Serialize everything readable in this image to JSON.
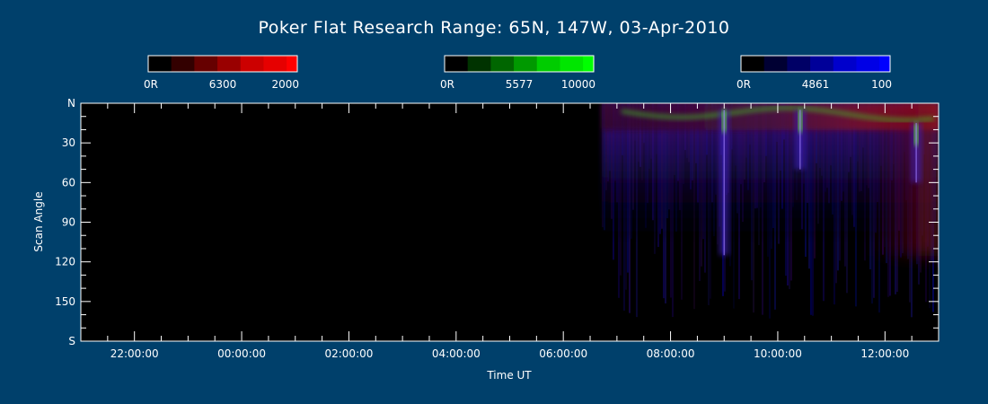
{
  "chart_data": {
    "type": "heatmap",
    "title": "Poker Flat Research Range: 65N, 147W, 03-Apr-2010",
    "xlabel": "Time UT",
    "ylabel": "Scan Angle",
    "x_ticks": [
      "22:00:00",
      "00:00:00",
      "02:00:00",
      "04:00:00",
      "06:00:00",
      "08:00:00",
      "10:00:00",
      "12:00:00"
    ],
    "x_range": [
      "21:00:00",
      "13:00:00"
    ],
    "y_ticks": [
      "N",
      "30",
      "60",
      "90",
      "120",
      "150",
      "S"
    ],
    "y_range": [
      0,
      180
    ],
    "data_start": "06:43:00",
    "colorbars": [
      {
        "channel": "6300",
        "min_label": "0R",
        "max_label": "2000",
        "color": "#ff0000",
        "swatches": [
          "#000000",
          "#330000",
          "#660000",
          "#990000",
          "#cc0000",
          "#e60000",
          "#ff0000"
        ]
      },
      {
        "channel": "5577",
        "min_label": "0R",
        "max_label": "10000",
        "color": "#00ff00",
        "swatches": [
          "#000000",
          "#003300",
          "#006600",
          "#009900",
          "#00cc00",
          "#00e600",
          "#00ff00"
        ]
      },
      {
        "channel": "4861",
        "min_label": "0R",
        "max_label": "100",
        "color": "#0000ff",
        "swatches": [
          "#000000",
          "#000033",
          "#000066",
          "#000099",
          "#0000cc",
          "#0000e6",
          "#0000ff"
        ]
      }
    ],
    "features": [
      {
        "time": "09:00:00",
        "channels": [
          "green",
          "blue"
        ],
        "from_angle": 5,
        "to_angle": 115
      },
      {
        "time": "10:25:00",
        "channels": [
          "green",
          "blue"
        ],
        "from_angle": 5,
        "to_angle": 50
      },
      {
        "time": "12:35:00",
        "channels": [
          "green",
          "red"
        ],
        "from_angle": 15,
        "to_angle": 60
      }
    ]
  },
  "colors": {
    "background": "#00406b",
    "plot_background": "#000000",
    "axis": "#ffffff"
  }
}
